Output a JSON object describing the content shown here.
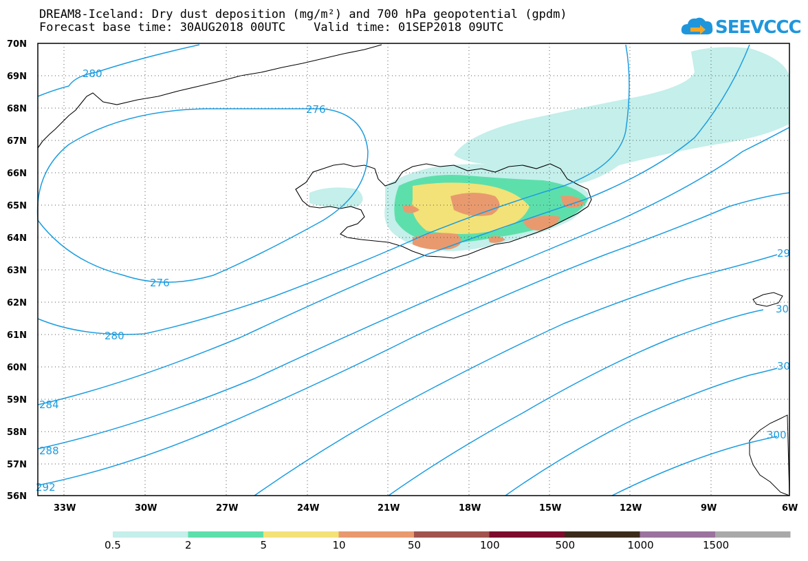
{
  "title": {
    "line1": "DREAM8-Iceland: Dry dust deposition (mg/m²) and 700 hPa geopotential (gpdm)",
    "line2": "Forecast base time: 30AUG2018 00UTC    Valid time: 01SEP2018 09UTC"
  },
  "logo": {
    "text": "SEEVCCC",
    "icon": "cloud-arrow-icon",
    "color": "#1f96dc"
  },
  "lat_labels": [
    "70N",
    "69N",
    "68N",
    "67N",
    "66N",
    "65N",
    "64N",
    "63N",
    "62N",
    "61N",
    "60N",
    "59N",
    "58N",
    "57N",
    "56N"
  ],
  "lon_labels": [
    "33W",
    "30W",
    "27W",
    "24W",
    "21W",
    "18W",
    "15W",
    "12W",
    "9W",
    "6W"
  ],
  "contour_labels": [
    "280",
    "276",
    "276",
    "280",
    "284",
    "288",
    "292",
    "29",
    "30",
    "30",
    "300"
  ],
  "legend": {
    "labels": [
      "0.5",
      "2",
      "5",
      "10",
      "50",
      "100",
      "500",
      "1000",
      "1500"
    ],
    "colors": [
      "#c4efea",
      "#5ddfac",
      "#f3e277",
      "#e89a6e",
      "#a0544c",
      "#7d0c2c",
      "#3b2a1c",
      "#9b739e",
      "#a9a9a9"
    ]
  },
  "contour_color": "#1b9de1"
}
